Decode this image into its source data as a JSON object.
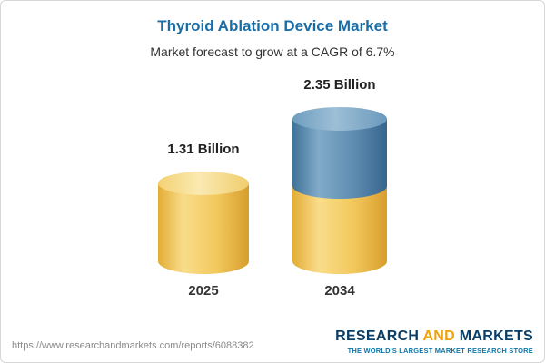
{
  "header": {
    "title": "Thyroid Ablation Device Market",
    "subtitle": "Market forecast to grow at a CAGR of 6.7%"
  },
  "chart_data": {
    "type": "bar",
    "title": "Thyroid Ablation Device Market",
    "subtitle": "Market forecast to grow at a CAGR of 6.7%",
    "cagr": "6.7%",
    "categories": [
      "2025",
      "2034"
    ],
    "values": [
      1.31,
      2.35
    ],
    "unit": "Billion",
    "value_labels": [
      "1.31 Billion",
      "2.35 Billion"
    ],
    "legend_position": "none",
    "grid": false,
    "colors": {
      "base_segment": "#F2C85C",
      "growth_segment": "#5D8CB1",
      "title_accent": "#1A6EA8"
    }
  },
  "footer": {
    "url": "https://www.researchandmarkets.com/reports/6088382",
    "logo": {
      "part1": "RESEARCH",
      "part2": "AND",
      "part3": "MARKETS",
      "tagline": "THE WORLD'S LARGEST MARKET RESEARCH STORE",
      "brand_navy": "#0B3E66",
      "brand_orange": "#F0A30A",
      "brand_teal": "#0E76A8"
    }
  }
}
